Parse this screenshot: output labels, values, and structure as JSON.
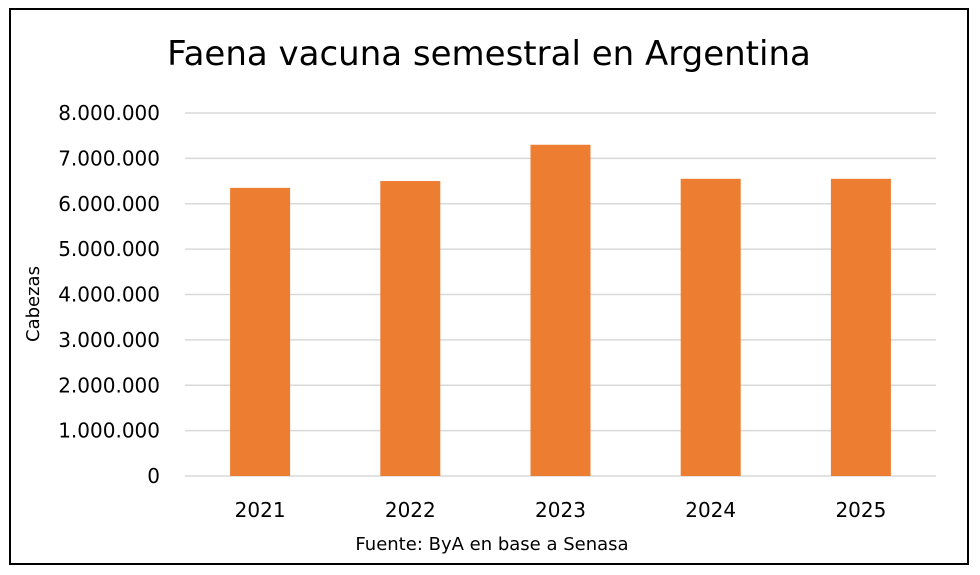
{
  "chart_data": {
    "type": "bar",
    "title": "Faena vacuna semestral en Argentina",
    "xlabel": "",
    "ylabel": "Cabezas",
    "source": "Fuente: ByA en base a Senasa",
    "categories": [
      "2021",
      "2022",
      "2023",
      "2024",
      "2025"
    ],
    "values": [
      6350000,
      6500000,
      7300000,
      6550000,
      6550000
    ],
    "ylim": [
      0,
      8000000
    ],
    "yticks": [
      0,
      1000000,
      2000000,
      3000000,
      4000000,
      5000000,
      6000000,
      7000000,
      8000000
    ],
    "ytick_labels": [
      "0",
      "1.000.000",
      "2.000.000",
      "3.000.000",
      "4.000.000",
      "5.000.000",
      "6.000.000",
      "7.000.000",
      "8.000.000"
    ],
    "grid": true,
    "legend": "none",
    "bar_color": "#ED7D31",
    "grid_color": "#D9D9D9"
  }
}
